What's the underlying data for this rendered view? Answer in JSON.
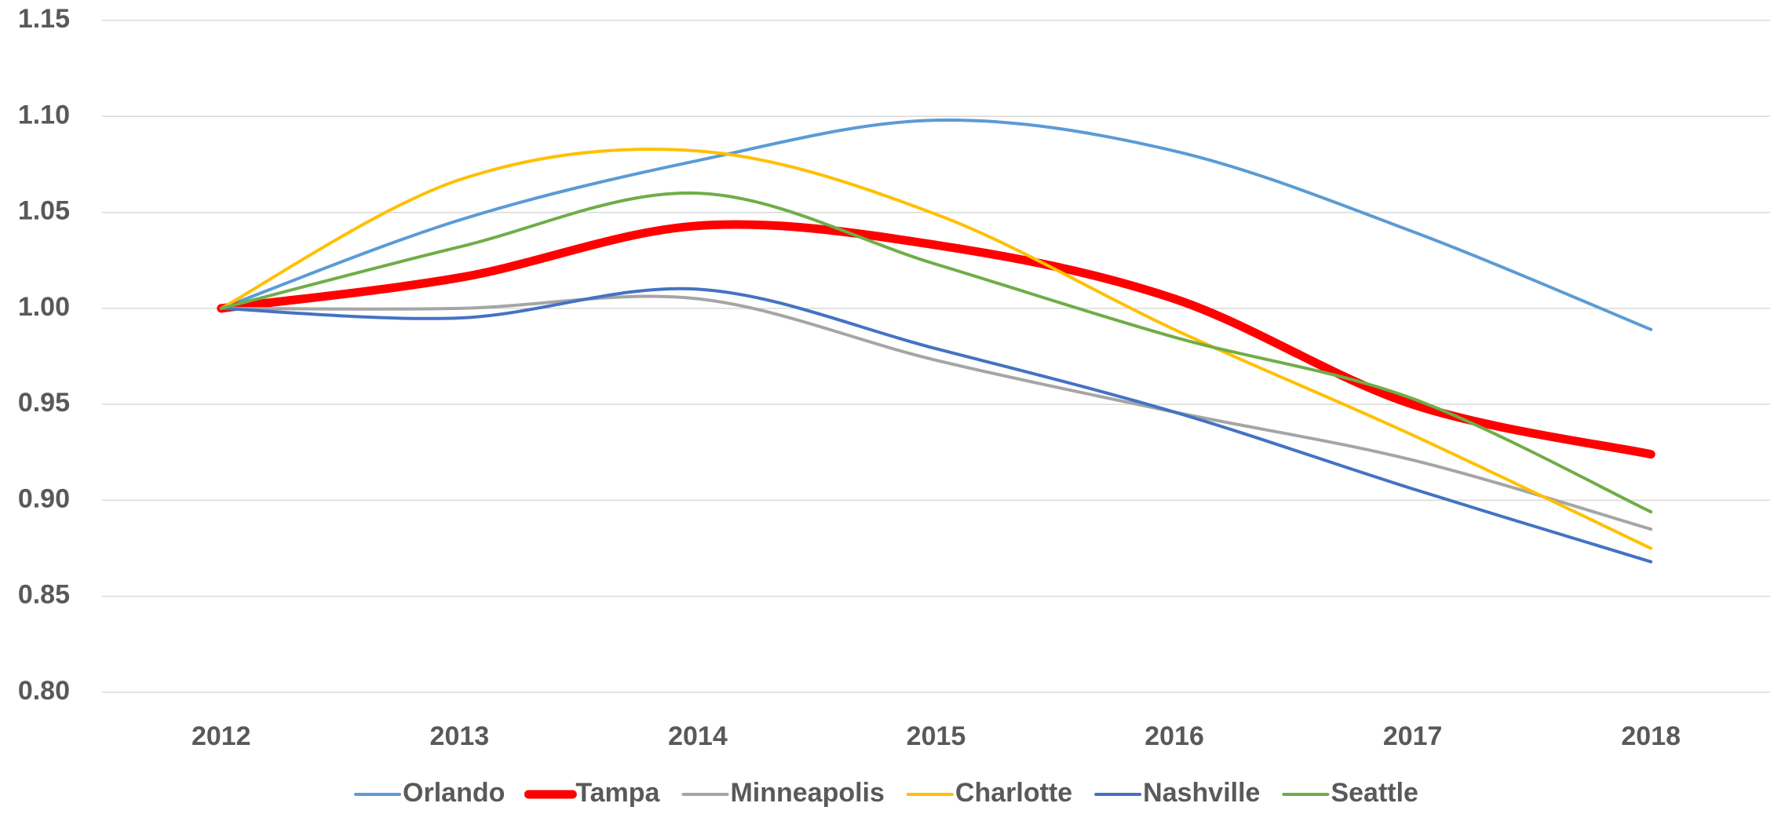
{
  "chart_data": {
    "type": "line",
    "smooth": true,
    "grid": true,
    "legend": "bottom",
    "categories": [
      "2012",
      "2013",
      "2014",
      "2015",
      "2016",
      "2017",
      "2018"
    ],
    "ylim": [
      0.8,
      1.15
    ],
    "yticks": [
      {
        "value": 0.8,
        "label": "0.80"
      },
      {
        "value": 0.85,
        "label": "0.85"
      },
      {
        "value": 0.9,
        "label": "0.90"
      },
      {
        "value": 0.95,
        "label": "0.95"
      },
      {
        "value": 1.0,
        "label": "1.00"
      },
      {
        "value": 1.05,
        "label": "1.05"
      },
      {
        "value": 1.1,
        "label": "1.10"
      },
      {
        "value": 1.15,
        "label": "1.15"
      }
    ],
    "series": [
      {
        "name": "Orlando",
        "color": "#5b9bd5",
        "line_width": 4,
        "values": [
          1.0,
          1.046,
          1.077,
          1.098,
          1.082,
          1.04,
          0.989
        ]
      },
      {
        "name": "Tampa",
        "color": "#ff0000",
        "line_width": 11,
        "values": [
          1.0,
          1.016,
          1.043,
          1.033,
          1.005,
          0.95,
          0.924
        ]
      },
      {
        "name": "Minneapolis",
        "color": "#a5a5a5",
        "line_width": 4,
        "values": [
          1.0,
          1.0,
          1.005,
          0.973,
          0.946,
          0.921,
          0.885
        ]
      },
      {
        "name": "Charlotte",
        "color": "#ffc000",
        "line_width": 4,
        "values": [
          1.0,
          1.067,
          1.082,
          1.049,
          0.989,
          0.934,
          0.875
        ]
      },
      {
        "name": "Nashville",
        "color": "#4472c4",
        "line_width": 4,
        "values": [
          1.0,
          0.995,
          1.01,
          0.979,
          0.946,
          0.906,
          0.868
        ]
      },
      {
        "name": "Seattle",
        "color": "#70ad47",
        "line_width": 4,
        "values": [
          1.0,
          1.032,
          1.06,
          1.023,
          0.985,
          0.953,
          0.894
        ]
      }
    ]
  }
}
